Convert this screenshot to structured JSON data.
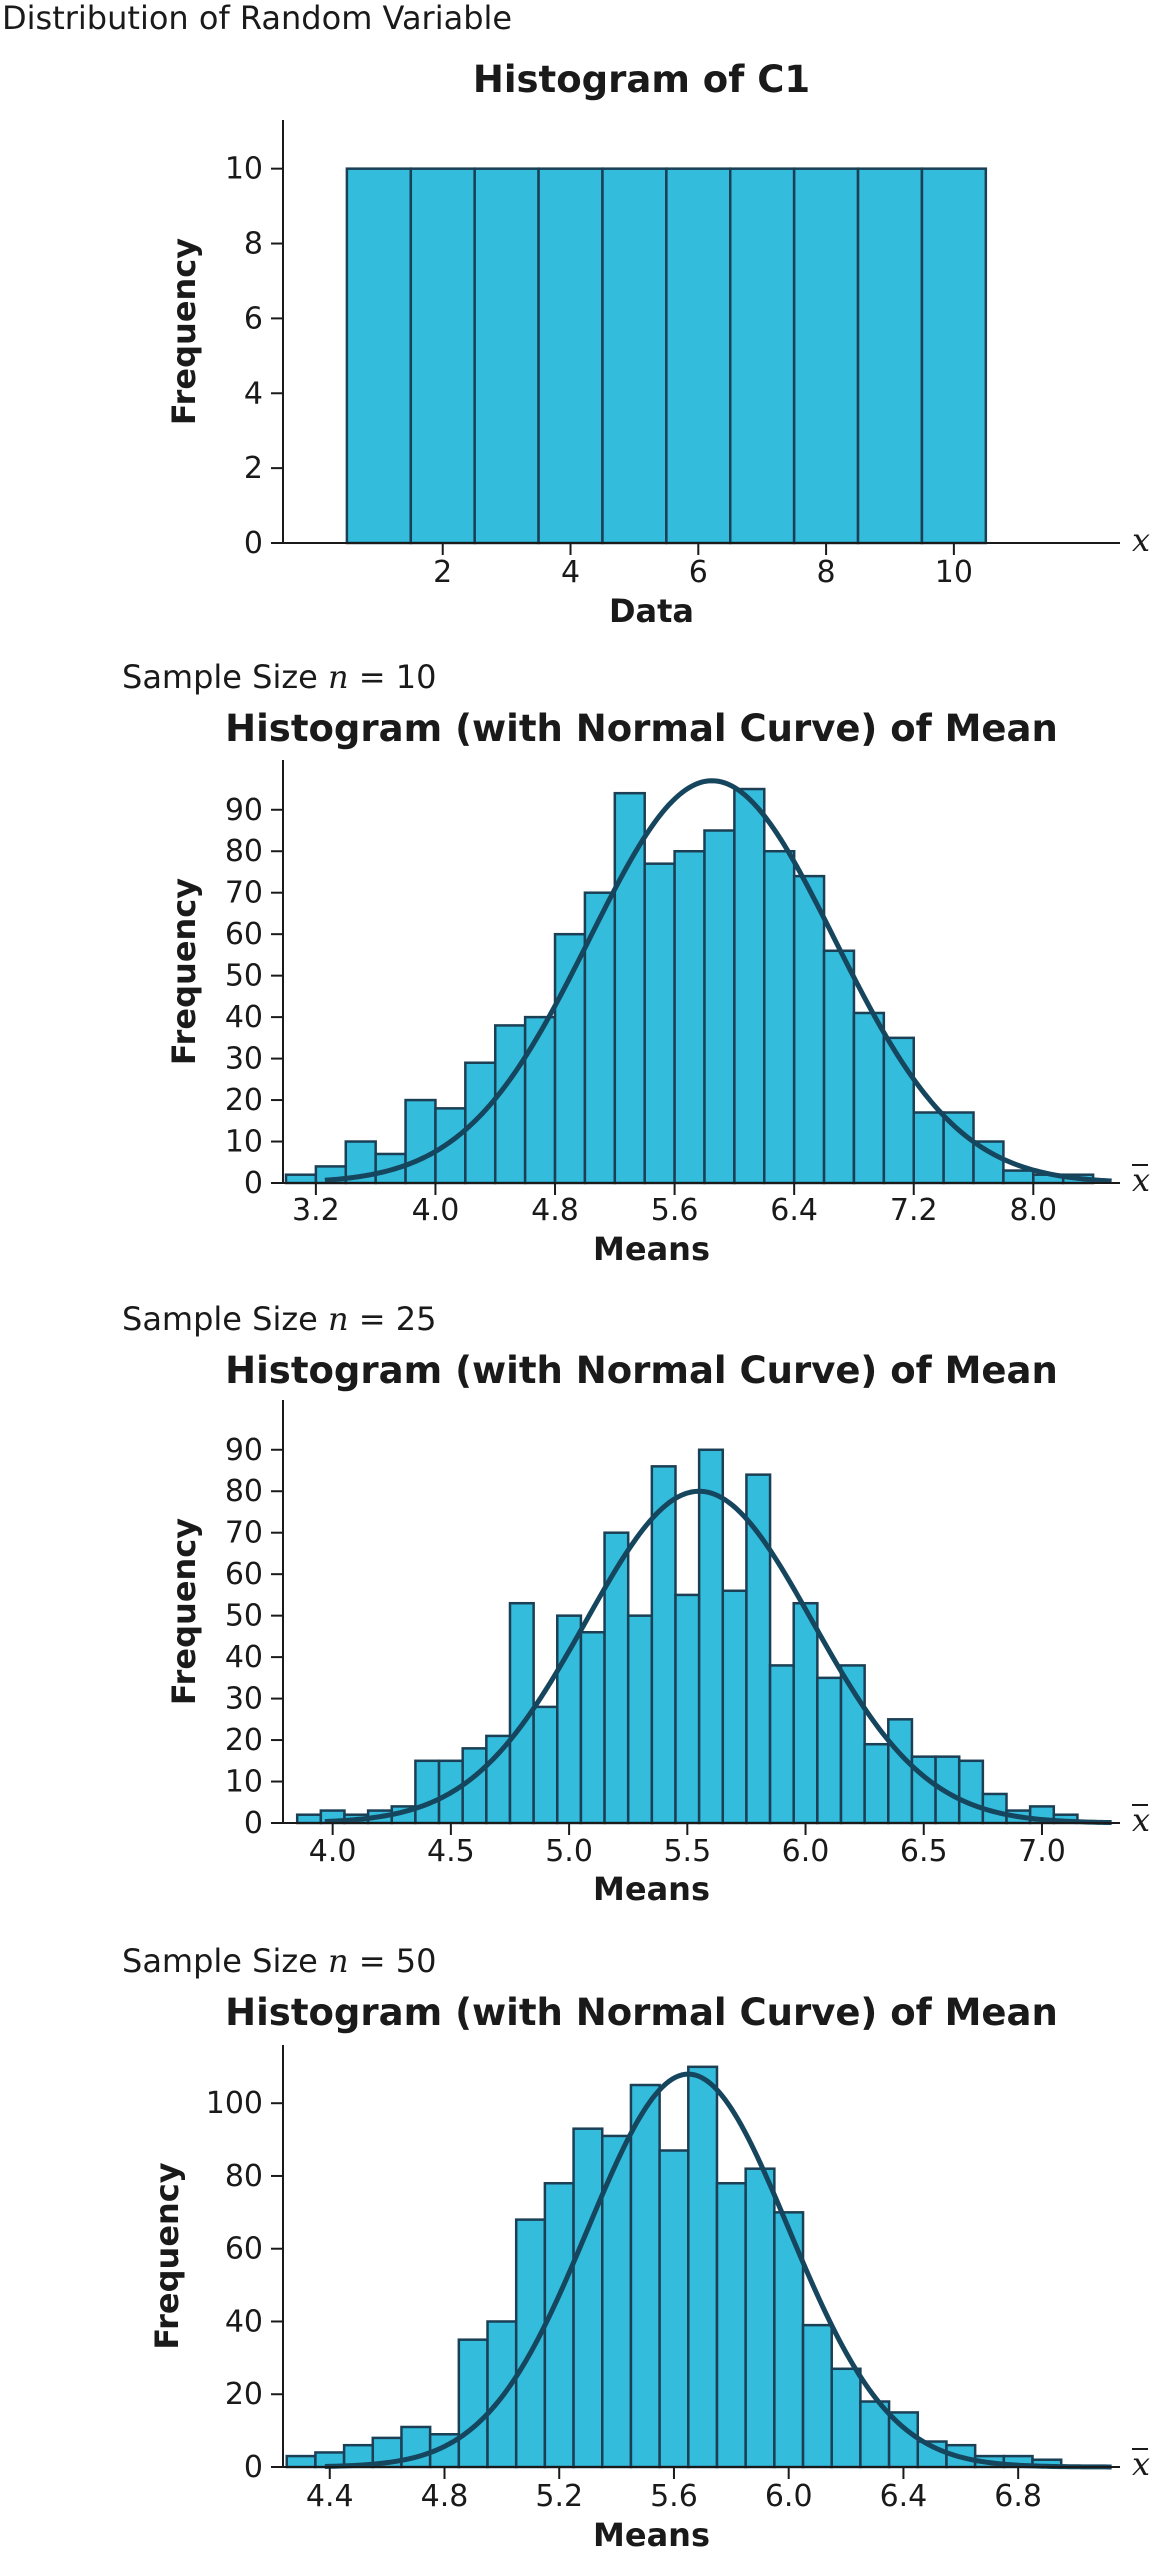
{
  "page": {
    "caption": "Distribution of Random Variable"
  },
  "chart_data": [
    {
      "type": "bar",
      "title": "Histogram of C1",
      "xlabel": "Data",
      "ylabel": "Frequency",
      "axis_end_label": "x",
      "x_ticks": [
        2,
        4,
        6,
        8,
        10
      ],
      "y_ticks": [
        0,
        2,
        4,
        6,
        8,
        10
      ],
      "xlim": [
        -0.5,
        12.6
      ],
      "ylim": [
        0,
        11.3
      ],
      "bin_width": 1,
      "bins": [
        {
          "x": 1,
          "y": 10
        },
        {
          "x": 2,
          "y": 10
        },
        {
          "x": 3,
          "y": 10
        },
        {
          "x": 4,
          "y": 10
        },
        {
          "x": 5,
          "y": 10
        },
        {
          "x": 6,
          "y": 10
        },
        {
          "x": 7,
          "y": 10
        },
        {
          "x": 8,
          "y": 10
        },
        {
          "x": 9,
          "y": 10
        },
        {
          "x": 10,
          "y": 10
        }
      ],
      "curve": null,
      "grid": false
    },
    {
      "type": "bar",
      "caption_prefix": "Sample Size ",
      "caption_var": "n",
      "caption_suffix": " = 10",
      "title": "Histogram (with Normal Curve) of Mean",
      "xlabel": "Means",
      "ylabel": "Frequency",
      "axis_end_label": "x",
      "x_ticks": [
        3.2,
        4.0,
        4.8,
        5.6,
        6.4,
        7.2,
        8.0
      ],
      "x_tick_labels": [
        "3.2",
        "4.0",
        "4.8",
        "5.6",
        "6.4",
        "7.2",
        "8.0"
      ],
      "y_ticks": [
        0,
        10,
        20,
        30,
        40,
        50,
        60,
        70,
        80,
        90
      ],
      "xlim": [
        2.98,
        8.58
      ],
      "ylim": [
        0,
        102
      ],
      "bin_width": 0.2,
      "bins": [
        {
          "x": 3.1,
          "y": 2
        },
        {
          "x": 3.3,
          "y": 4
        },
        {
          "x": 3.5,
          "y": 10
        },
        {
          "x": 3.7,
          "y": 7
        },
        {
          "x": 3.9,
          "y": 20
        },
        {
          "x": 4.1,
          "y": 18
        },
        {
          "x": 4.3,
          "y": 29
        },
        {
          "x": 4.5,
          "y": 38
        },
        {
          "x": 4.7,
          "y": 40
        },
        {
          "x": 4.9,
          "y": 60
        },
        {
          "x": 5.1,
          "y": 70
        },
        {
          "x": 5.3,
          "y": 94
        },
        {
          "x": 5.5,
          "y": 77
        },
        {
          "x": 5.7,
          "y": 80
        },
        {
          "x": 5.9,
          "y": 85
        },
        {
          "x": 6.1,
          "y": 95
        },
        {
          "x": 6.3,
          "y": 80
        },
        {
          "x": 6.5,
          "y": 74
        },
        {
          "x": 6.7,
          "y": 56
        },
        {
          "x": 6.9,
          "y": 41
        },
        {
          "x": 7.1,
          "y": 35
        },
        {
          "x": 7.3,
          "y": 17
        },
        {
          "x": 7.5,
          "y": 17
        },
        {
          "x": 7.7,
          "y": 10
        },
        {
          "x": 7.9,
          "y": 3
        },
        {
          "x": 8.1,
          "y": 2
        },
        {
          "x": 8.3,
          "y": 2
        }
      ],
      "curve": {
        "mean": 5.85,
        "sd": 0.82,
        "peak": 97
      },
      "grid": false
    },
    {
      "type": "bar",
      "caption_prefix": "Sample Size ",
      "caption_var": "n",
      "caption_suffix": " = 25",
      "title": "Histogram (with Normal Curve) of Mean",
      "xlabel": "Means",
      "ylabel": "Frequency",
      "axis_end_label": "x",
      "x_ticks": [
        4.0,
        4.5,
        5.0,
        5.5,
        6.0,
        6.5,
        7.0
      ],
      "x_tick_labels": [
        "4.0",
        "4.5",
        "5.0",
        "5.5",
        "6.0",
        "6.5",
        "7.0"
      ],
      "y_ticks": [
        0,
        10,
        20,
        30,
        40,
        50,
        60,
        70,
        80,
        90
      ],
      "xlim": [
        3.79,
        7.33
      ],
      "ylim": [
        0,
        102
      ],
      "bin_width": 0.1,
      "bins": [
        {
          "x": 3.9,
          "y": 2
        },
        {
          "x": 4.0,
          "y": 3
        },
        {
          "x": 4.1,
          "y": 2
        },
        {
          "x": 4.2,
          "y": 3
        },
        {
          "x": 4.3,
          "y": 4
        },
        {
          "x": 4.4,
          "y": 15
        },
        {
          "x": 4.5,
          "y": 15
        },
        {
          "x": 4.6,
          "y": 18
        },
        {
          "x": 4.7,
          "y": 21
        },
        {
          "x": 4.8,
          "y": 53
        },
        {
          "x": 4.9,
          "y": 28
        },
        {
          "x": 5.0,
          "y": 50
        },
        {
          "x": 5.1,
          "y": 46
        },
        {
          "x": 5.2,
          "y": 70
        },
        {
          "x": 5.3,
          "y": 50
        },
        {
          "x": 5.4,
          "y": 86
        },
        {
          "x": 5.5,
          "y": 55
        },
        {
          "x": 5.6,
          "y": 90
        },
        {
          "x": 5.7,
          "y": 56
        },
        {
          "x": 5.8,
          "y": 84
        },
        {
          "x": 5.9,
          "y": 38
        },
        {
          "x": 6.0,
          "y": 53
        },
        {
          "x": 6.1,
          "y": 35
        },
        {
          "x": 6.2,
          "y": 38
        },
        {
          "x": 6.3,
          "y": 19
        },
        {
          "x": 6.4,
          "y": 25
        },
        {
          "x": 6.5,
          "y": 16
        },
        {
          "x": 6.6,
          "y": 16
        },
        {
          "x": 6.7,
          "y": 15
        },
        {
          "x": 6.8,
          "y": 7
        },
        {
          "x": 6.9,
          "y": 3
        },
        {
          "x": 7.0,
          "y": 4
        },
        {
          "x": 7.1,
          "y": 2
        }
      ],
      "curve": {
        "mean": 5.55,
        "sd": 0.48,
        "peak": 80
      },
      "grid": false
    },
    {
      "type": "bar",
      "caption_prefix": "Sample Size ",
      "caption_var": "n",
      "caption_suffix": " = 50",
      "title": "Histogram (with Normal Curve) of Mean",
      "xlabel": "Means",
      "ylabel": "Frequency",
      "axis_end_label": "x",
      "x_ticks": [
        4.4,
        4.8,
        5.2,
        5.6,
        6.0,
        6.4,
        6.8
      ],
      "x_tick_labels": [
        "4.4",
        "4.8",
        "5.2",
        "5.6",
        "6.0",
        "6.4",
        "6.8"
      ],
      "y_ticks": [
        0,
        20,
        40,
        60,
        80,
        100
      ],
      "xlim": [
        4.237,
        7.155
      ],
      "ylim": [
        0,
        116
      ],
      "bin_width": 0.1,
      "bins": [
        {
          "x": 4.3,
          "y": 3
        },
        {
          "x": 4.4,
          "y": 4
        },
        {
          "x": 4.5,
          "y": 6
        },
        {
          "x": 4.6,
          "y": 8
        },
        {
          "x": 4.7,
          "y": 11
        },
        {
          "x": 4.8,
          "y": 9
        },
        {
          "x": 4.9,
          "y": 35
        },
        {
          "x": 5.0,
          "y": 40
        },
        {
          "x": 5.1,
          "y": 68
        },
        {
          "x": 5.2,
          "y": 78
        },
        {
          "x": 5.3,
          "y": 93
        },
        {
          "x": 5.4,
          "y": 91
        },
        {
          "x": 5.5,
          "y": 105
        },
        {
          "x": 5.6,
          "y": 87
        },
        {
          "x": 5.7,
          "y": 110
        },
        {
          "x": 5.8,
          "y": 78
        },
        {
          "x": 5.9,
          "y": 82
        },
        {
          "x": 6.0,
          "y": 70
        },
        {
          "x": 6.1,
          "y": 39
        },
        {
          "x": 6.2,
          "y": 27
        },
        {
          "x": 6.3,
          "y": 18
        },
        {
          "x": 6.4,
          "y": 15
        },
        {
          "x": 6.5,
          "y": 7
        },
        {
          "x": 6.6,
          "y": 6
        },
        {
          "x": 6.7,
          "y": 3
        },
        {
          "x": 6.8,
          "y": 3
        },
        {
          "x": 6.9,
          "y": 2
        }
      ],
      "curve": {
        "mean": 5.65,
        "sd": 0.35,
        "peak": 108
      },
      "grid": false
    }
  ]
}
